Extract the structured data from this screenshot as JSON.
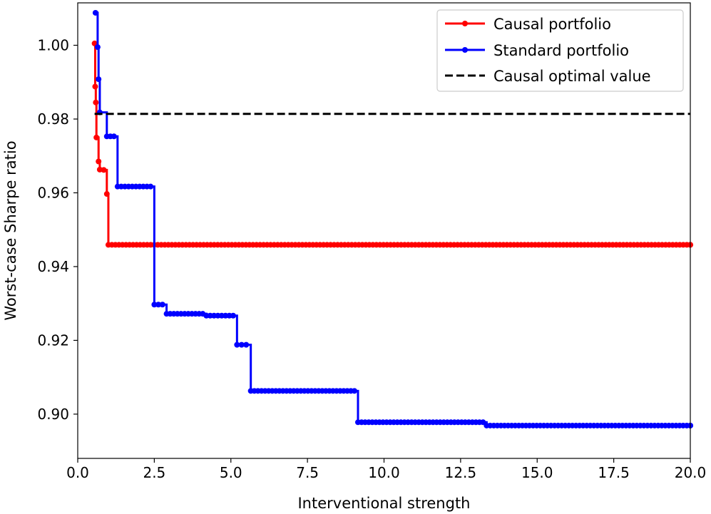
{
  "chart_data": {
    "type": "line",
    "title": "",
    "xlabel": "Interventional strength",
    "ylabel": "Worst-case Sharpe ratio",
    "xlim": [
      0.0,
      20.0
    ],
    "ylim": [
      0.888,
      1.0115
    ],
    "x_ticks": [
      0.0,
      2.5,
      5.0,
      7.5,
      10.0,
      12.5,
      15.0,
      17.5,
      20.0
    ],
    "x_tick_labels": [
      "0.0",
      "2.5",
      "5.0",
      "7.5",
      "10.0",
      "12.5",
      "15.0",
      "17.5",
      "20.0"
    ],
    "y_ticks": [
      0.9,
      0.92,
      0.94,
      0.96,
      0.98,
      1.0
    ],
    "y_tick_labels": [
      "0.90",
      "0.92",
      "0.94",
      "0.96",
      "0.98",
      "1.00"
    ],
    "grid": false,
    "legend_position": "top-right",
    "series": [
      {
        "name": "Causal portfolio",
        "color": "#ff0000",
        "style": "line-markers",
        "step_points": [
          [
            0.55,
            1.0005
          ],
          [
            0.57,
            0.9888
          ],
          [
            0.59,
            0.9845
          ],
          [
            0.61,
            0.975
          ],
          [
            0.68,
            0.9685
          ],
          [
            0.72,
            0.9663
          ],
          [
            0.85,
            0.9662
          ],
          [
            0.95,
            0.9597
          ],
          [
            1.0,
            0.9459
          ],
          [
            20.0,
            0.9459
          ]
        ]
      },
      {
        "name": "Standard portfolio",
        "color": "#0000ff",
        "style": "line-markers",
        "step_points": [
          [
            0.58,
            1.0088
          ],
          [
            0.65,
            0.9995
          ],
          [
            0.68,
            0.9908
          ],
          [
            0.72,
            0.9818
          ],
          [
            0.95,
            0.9753
          ],
          [
            1.3,
            0.9617
          ],
          [
            2.5,
            0.9297
          ],
          [
            2.9,
            0.9272
          ],
          [
            4.2,
            0.9267
          ],
          [
            5.2,
            0.9188
          ],
          [
            5.65,
            0.9063
          ],
          [
            9.15,
            0.8978
          ],
          [
            13.35,
            0.8969
          ],
          [
            20.0,
            0.8969
          ]
        ]
      },
      {
        "name": "Causal optimal value",
        "color": "#000000",
        "style": "dashed",
        "x": [
          0.55,
          20.0
        ],
        "y": [
          0.9814,
          0.9814
        ]
      }
    ]
  }
}
